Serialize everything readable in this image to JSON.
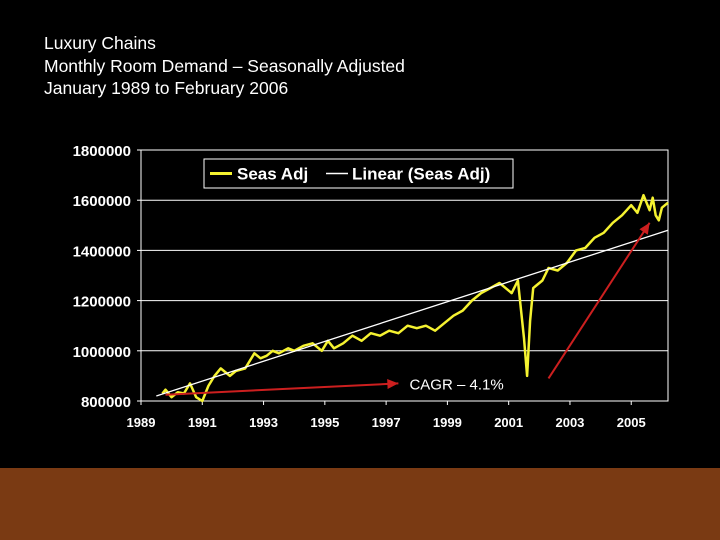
{
  "slide": {
    "title_lines": [
      "Luxury Chains",
      "Monthly Room Demand – Seasonally Adjusted",
      "January 1989 to February 2006"
    ],
    "background_color": "#000000",
    "footer_color": "#7a3a13"
  },
  "chart_data": {
    "type": "line",
    "title": "",
    "xlabel": "",
    "ylabel": "",
    "xlim": [
      1989,
      2006.2
    ],
    "ylim": [
      800000,
      1800000
    ],
    "x_ticks": [
      "1989",
      "1991",
      "1993",
      "1995",
      "1997",
      "1999",
      "2001",
      "2003",
      "2005"
    ],
    "y_ticks": [
      "1800000",
      "1600000",
      "1400000",
      "1200000",
      "1000000",
      "800000"
    ],
    "grid": true,
    "legend": [
      "Seas Adj",
      "Linear (Seas Adj)"
    ],
    "legend_position": "top-right",
    "series": [
      {
        "name": "Seas Adj",
        "color": "#f5f230",
        "x": [
          1989.7,
          1989.8,
          1990.0,
          1990.2,
          1990.4,
          1990.6,
          1990.8,
          1991.0,
          1991.2,
          1991.4,
          1991.6,
          1991.9,
          1992.1,
          1992.4,
          1992.7,
          1992.9,
          1993.1,
          1993.3,
          1993.5,
          1993.8,
          1994.0,
          1994.3,
          1994.6,
          1994.9,
          1995.1,
          1995.3,
          1995.6,
          1995.9,
          1996.2,
          1996.5,
          1996.8,
          1997.1,
          1997.4,
          1997.7,
          1998.0,
          1998.3,
          1998.6,
          1998.9,
          1999.2,
          1999.5,
          1999.8,
          2000.1,
          2000.4,
          2000.7,
          2000.9,
          2001.1,
          2001.3,
          2001.5,
          2001.6,
          2001.7,
          2001.8,
          2001.9,
          2002.1,
          2002.3,
          2002.6,
          2002.9,
          2003.2,
          2003.5,
          2003.8,
          2004.1,
          2004.4,
          2004.7,
          2005.0,
          2005.2,
          2005.4,
          2005.6,
          2005.7,
          2005.8,
          2005.9,
          2006.0,
          2006.2
        ],
        "values": [
          830000,
          845000,
          815000,
          835000,
          830000,
          870000,
          815000,
          800000,
          860000,
          900000,
          930000,
          900000,
          920000,
          930000,
          990000,
          970000,
          980000,
          1000000,
          990000,
          1010000,
          1000000,
          1020000,
          1030000,
          1000000,
          1040000,
          1010000,
          1030000,
          1060000,
          1040000,
          1070000,
          1060000,
          1080000,
          1070000,
          1100000,
          1090000,
          1100000,
          1080000,
          1110000,
          1140000,
          1160000,
          1200000,
          1230000,
          1250000,
          1270000,
          1250000,
          1230000,
          1280000,
          1050000,
          900000,
          1120000,
          1250000,
          1260000,
          1280000,
          1330000,
          1320000,
          1350000,
          1400000,
          1410000,
          1450000,
          1470000,
          1510000,
          1540000,
          1580000,
          1550000,
          1620000,
          1560000,
          1610000,
          1540000,
          1520000,
          1570000,
          1590000
        ]
      },
      {
        "name": "Linear (Seas Adj)",
        "color": "#ffffff",
        "x": [
          1989.5,
          2006.2
        ],
        "values": [
          820000,
          1480000
        ]
      }
    ],
    "annotations": [
      {
        "text": "CAGR – 4.1%",
        "x": 1999.3,
        "y": 870000,
        "color": "#ffffff"
      }
    ],
    "arrows": [
      {
        "color": "#cc1f1f",
        "from": [
          1989.8,
          825000
        ],
        "to": [
          1997.4,
          870000
        ]
      },
      {
        "color": "#cc1f1f",
        "from": [
          2002.3,
          890000
        ],
        "to": [
          2005.6,
          1510000
        ]
      }
    ]
  }
}
